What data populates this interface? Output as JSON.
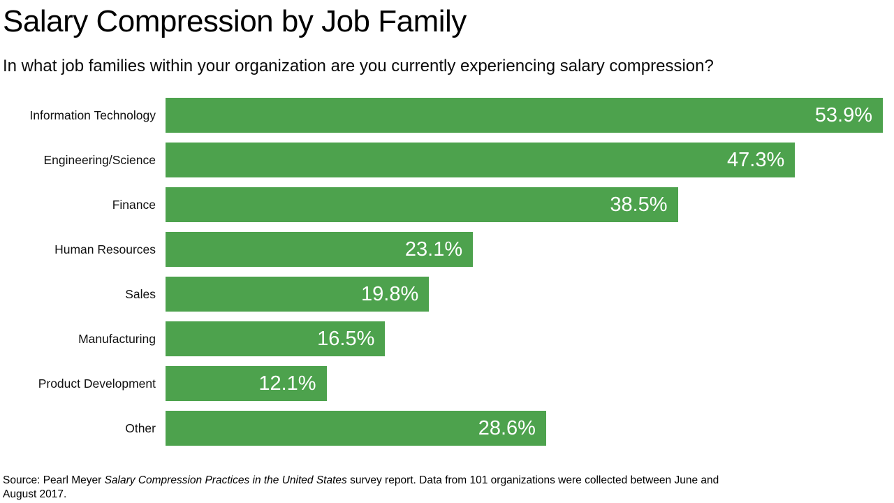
{
  "chart_data": {
    "type": "bar",
    "orientation": "horizontal",
    "title": "Salary Compression by Job Family",
    "subtitle": "In what job families within your organization are you currently experiencing salary compression?",
    "categories": [
      "Information Technology",
      "Engineering/Science",
      "Finance",
      "Human Resources",
      "Sales",
      "Manufacturing",
      "Product Development",
      "Other"
    ],
    "values": [
      53.9,
      47.3,
      38.5,
      23.1,
      19.8,
      16.5,
      12.1,
      28.6
    ],
    "value_labels": [
      "53.9%",
      "47.3%",
      "38.5%",
      "23.1%",
      "19.8%",
      "16.5%",
      "12.1%",
      "28.6%"
    ],
    "xlim": [
      0,
      53.9
    ],
    "grid": false,
    "legend_position": "none",
    "bar_color": "#4DA24D",
    "value_label_color": "#FFFFFF",
    "label_color": "#111111"
  },
  "source": {
    "prefix": "Source: Pearl Meyer ",
    "italic": "Salary Compression Practices in the United States",
    "suffix": " survey report. Data from 101 organizations were collected between June and August 2017."
  }
}
